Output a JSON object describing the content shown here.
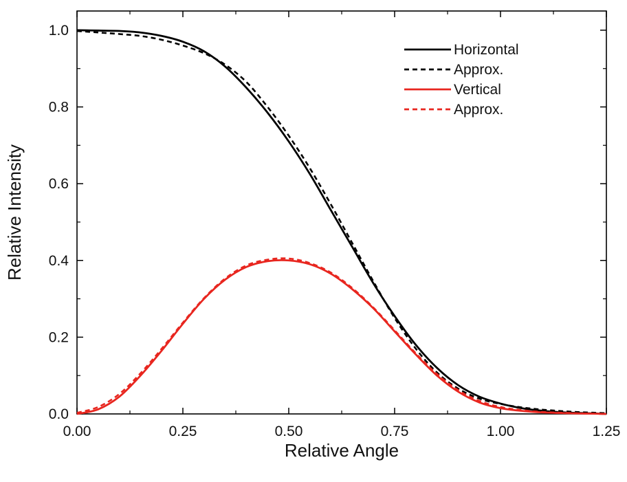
{
  "chart_data": {
    "type": "line",
    "title": "",
    "xlabel": "Relative Angle",
    "ylabel": "Relative Intensity",
    "xlim": [
      0,
      1.25
    ],
    "ylim": [
      0,
      1.05
    ],
    "x_ticks": [
      "0.00",
      "0.25",
      "0.50",
      "0.75",
      "1.00",
      "1.25"
    ],
    "y_ticks": [
      "0.0",
      "0.2",
      "0.4",
      "0.6",
      "0.8",
      "1.0"
    ],
    "grid": false,
    "legend_position": "top-right",
    "series": [
      {
        "name": "Horizontal",
        "color": "#000000",
        "style": "solid",
        "x": [
          0,
          0.05,
          0.1,
          0.15,
          0.2,
          0.25,
          0.3,
          0.35,
          0.4,
          0.45,
          0.5,
          0.55,
          0.6,
          0.65,
          0.7,
          0.75,
          0.8,
          0.85,
          0.9,
          0.95,
          1.0,
          1.05,
          1.1,
          1.15,
          1.2,
          1.25
        ],
        "y": [
          1.0,
          0.999,
          0.998,
          0.994,
          0.985,
          0.97,
          0.945,
          0.905,
          0.85,
          0.785,
          0.71,
          0.625,
          0.53,
          0.435,
          0.34,
          0.255,
          0.18,
          0.12,
          0.075,
          0.045,
          0.027,
          0.015,
          0.008,
          0.004,
          0.002,
          0.0
        ]
      },
      {
        "name": "Approx.",
        "color": "#000000",
        "style": "dashed",
        "x": [
          0,
          0.05,
          0.1,
          0.15,
          0.2,
          0.25,
          0.3,
          0.35,
          0.4,
          0.45,
          0.5,
          0.55,
          0.6,
          0.65,
          0.7,
          0.75,
          0.8,
          0.85,
          0.9,
          0.95,
          1.0,
          1.05,
          1.1,
          1.15,
          1.2,
          1.25
        ],
        "y": [
          0.998,
          0.994,
          0.99,
          0.985,
          0.975,
          0.96,
          0.94,
          0.91,
          0.865,
          0.8,
          0.725,
          0.64,
          0.545,
          0.445,
          0.345,
          0.25,
          0.17,
          0.108,
          0.066,
          0.04,
          0.026,
          0.017,
          0.011,
          0.007,
          0.004,
          0.002
        ]
      },
      {
        "name": "Vertical",
        "color": "#e8261f",
        "style": "solid",
        "x": [
          0,
          0.05,
          0.1,
          0.15,
          0.2,
          0.25,
          0.3,
          0.35,
          0.4,
          0.45,
          0.5,
          0.55,
          0.6,
          0.65,
          0.7,
          0.75,
          0.8,
          0.85,
          0.9,
          0.95,
          1.0,
          1.05,
          1.1,
          1.15,
          1.2,
          1.25
        ],
        "y": [
          0.0,
          0.012,
          0.045,
          0.1,
          0.165,
          0.235,
          0.3,
          0.35,
          0.383,
          0.398,
          0.4,
          0.39,
          0.365,
          0.325,
          0.275,
          0.215,
          0.155,
          0.1,
          0.058,
          0.03,
          0.015,
          0.008,
          0.004,
          0.002,
          0.001,
          0.0
        ]
      },
      {
        "name": "Approx.",
        "color": "#e8261f",
        "style": "dashed",
        "x": [
          0,
          0.05,
          0.1,
          0.15,
          0.2,
          0.25,
          0.3,
          0.35,
          0.4,
          0.45,
          0.5,
          0.55,
          0.6,
          0.65,
          0.7,
          0.75,
          0.8,
          0.85,
          0.9,
          0.95,
          1.0,
          1.05,
          1.1,
          1.15,
          1.2,
          1.25
        ],
        "y": [
          0.003,
          0.018,
          0.052,
          0.106,
          0.17,
          0.238,
          0.302,
          0.353,
          0.387,
          0.402,
          0.405,
          0.393,
          0.368,
          0.328,
          0.277,
          0.218,
          0.158,
          0.104,
          0.062,
          0.034,
          0.018,
          0.01,
          0.005,
          0.003,
          0.001,
          0.0
        ]
      }
    ]
  }
}
